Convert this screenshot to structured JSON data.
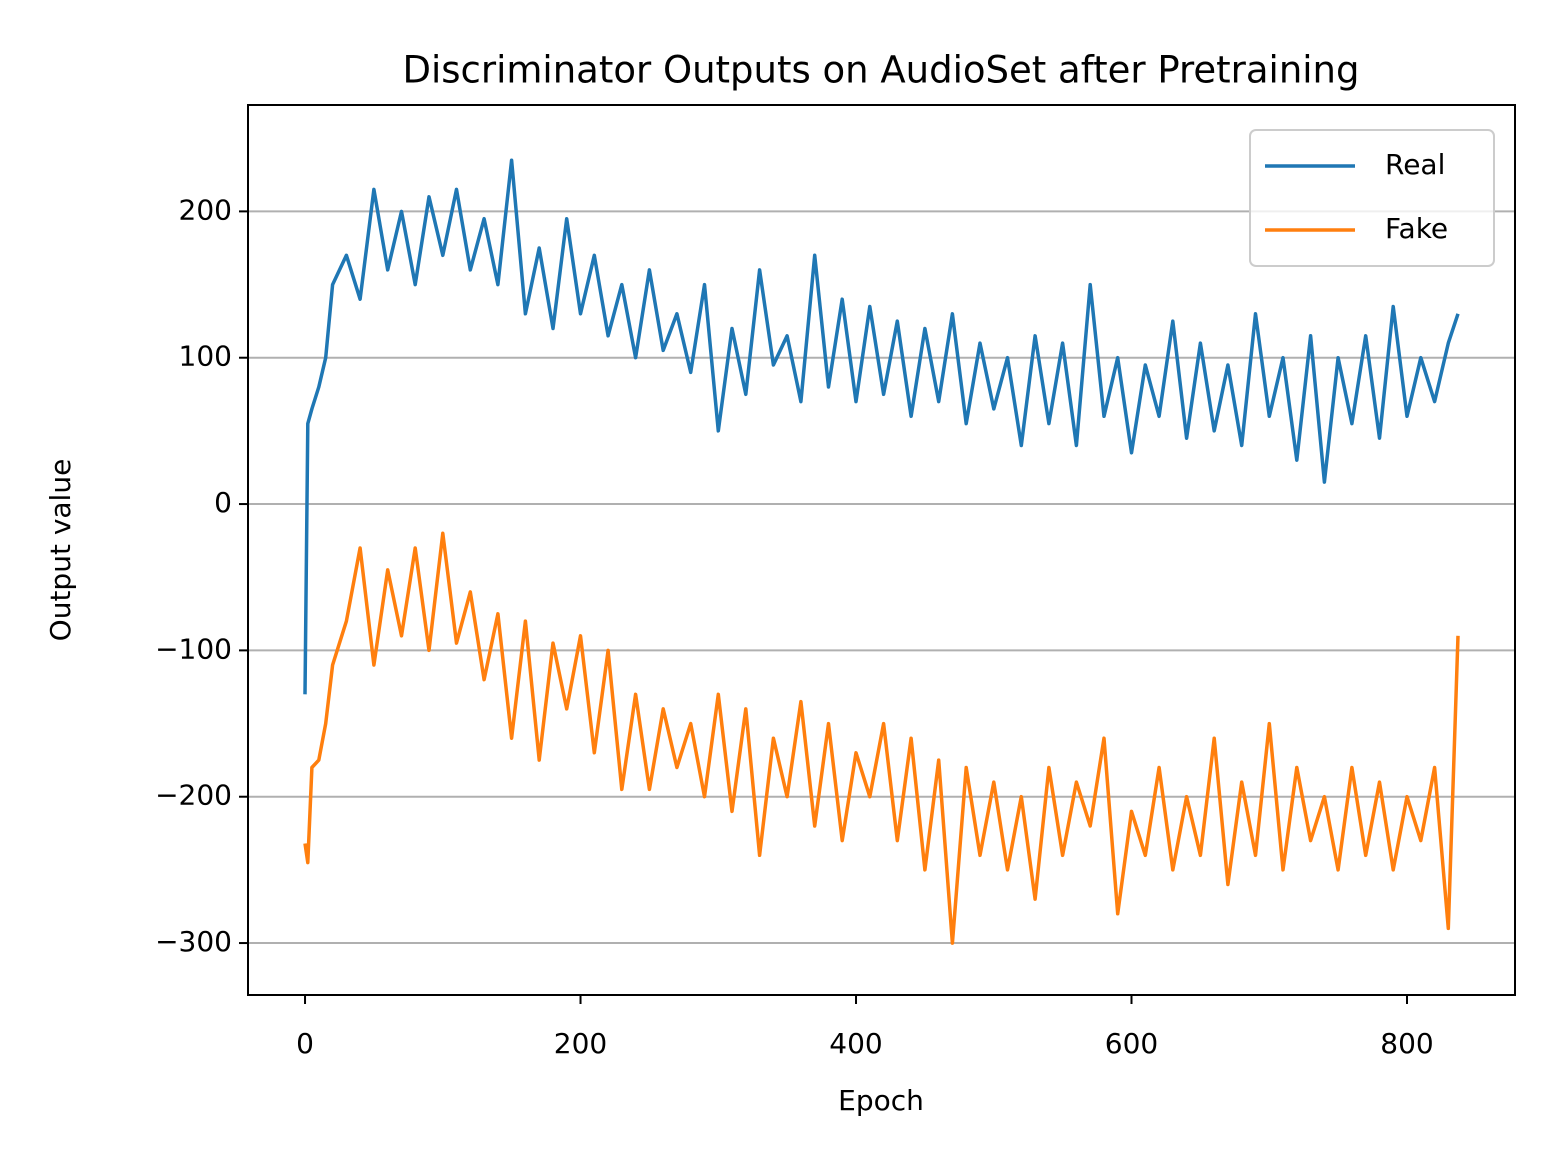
{
  "chart_data": {
    "type": "line",
    "title": "Discriminator Outputs on AudioSet after Pretraining",
    "x_label": "Epoch",
    "y_label": "Output value",
    "x": [
      0,
      2,
      5,
      10,
      15,
      20,
      30,
      40,
      50,
      60,
      70,
      80,
      90,
      100,
      110,
      120,
      130,
      140,
      150,
      160,
      170,
      180,
      190,
      200,
      210,
      220,
      230,
      240,
      250,
      260,
      270,
      280,
      290,
      300,
      310,
      320,
      330,
      340,
      350,
      360,
      370,
      380,
      390,
      400,
      410,
      420,
      430,
      440,
      450,
      460,
      470,
      480,
      490,
      500,
      510,
      520,
      530,
      540,
      550,
      560,
      570,
      580,
      590,
      600,
      610,
      620,
      630,
      640,
      650,
      660,
      670,
      680,
      690,
      700,
      710,
      720,
      730,
      740,
      750,
      760,
      770,
      780,
      790,
      800,
      810,
      820,
      830,
      837
    ],
    "series": [
      {
        "name": "Real",
        "color": "#1f77b4",
        "values": [
          -130,
          55,
          65,
          80,
          100,
          150,
          170,
          140,
          215,
          160,
          200,
          150,
          210,
          170,
          215,
          160,
          195,
          150,
          235,
          130,
          175,
          120,
          195,
          130,
          170,
          115,
          150,
          100,
          160,
          105,
          130,
          90,
          150,
          50,
          120,
          75,
          160,
          95,
          115,
          70,
          170,
          80,
          140,
          70,
          135,
          75,
          125,
          60,
          120,
          70,
          130,
          55,
          110,
          65,
          100,
          40,
          115,
          55,
          110,
          40,
          150,
          60,
          100,
          35,
          95,
          60,
          125,
          45,
          110,
          50,
          95,
          40,
          130,
          60,
          100,
          30,
          115,
          15,
          100,
          55,
          115,
          45,
          135,
          60,
          100,
          70,
          110,
          130
        ]
      },
      {
        "name": "Fake",
        "color": "#ff7f0e",
        "values": [
          -232,
          -245,
          -180,
          -175,
          -150,
          -110,
          -80,
          -30,
          -110,
          -45,
          -90,
          -30,
          -100,
          -20,
          -95,
          -60,
          -120,
          -75,
          -160,
          -80,
          -175,
          -95,
          -140,
          -90,
          -170,
          -100,
          -195,
          -130,
          -195,
          -140,
          -180,
          -150,
          -200,
          -130,
          -210,
          -140,
          -240,
          -160,
          -200,
          -135,
          -220,
          -150,
          -230,
          -170,
          -200,
          -150,
          -230,
          -160,
          -250,
          -175,
          -300,
          -180,
          -240,
          -190,
          -250,
          -200,
          -270,
          -180,
          -240,
          -190,
          -220,
          -160,
          -280,
          -210,
          -240,
          -180,
          -250,
          -200,
          -240,
          -160,
          -260,
          -190,
          -240,
          -150,
          -250,
          -180,
          -230,
          -200,
          -250,
          -180,
          -240,
          -190,
          -250,
          -200,
          -230,
          -180,
          -290,
          -90
        ]
      }
    ],
    "xlim": [
      -41.4,
      878.4
    ],
    "xticks": [
      0,
      200,
      400,
      600,
      800
    ],
    "ylim": [
      -335.5,
      272.7
    ],
    "yticks": [
      {
        "value": -300,
        "label": "−300"
      },
      {
        "value": -200,
        "label": "−200"
      },
      {
        "value": -100,
        "label": "−100"
      },
      0,
      100,
      200
    ],
    "grid": "y",
    "legend": "upper right"
  }
}
